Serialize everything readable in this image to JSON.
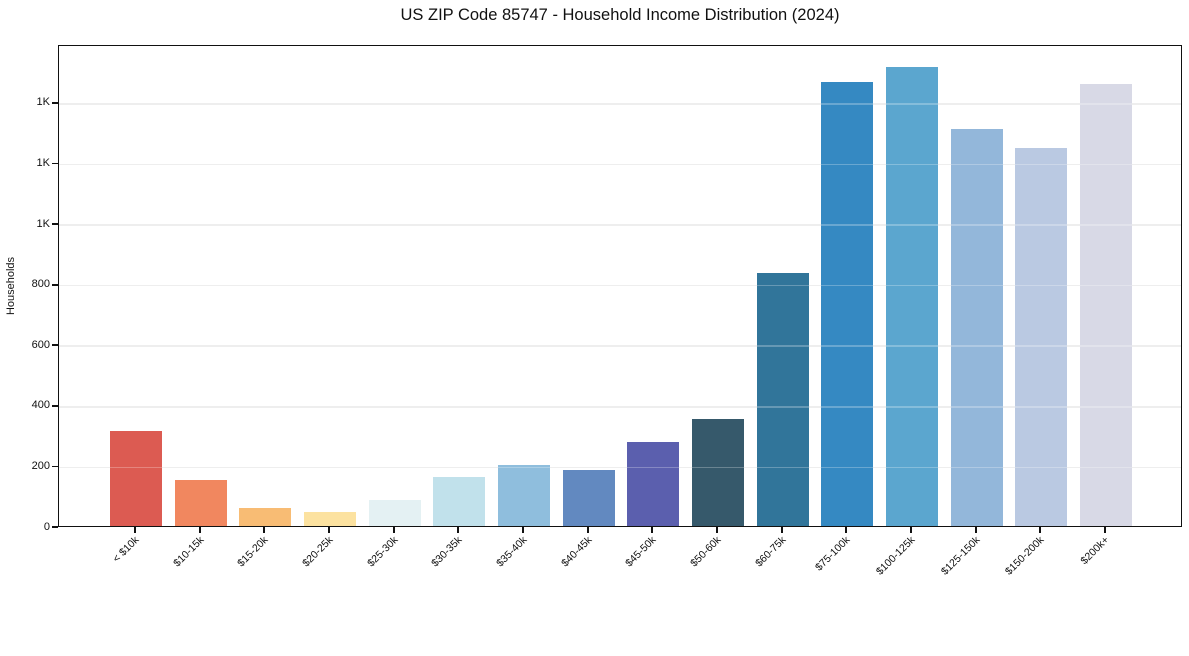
{
  "chart_data": {
    "type": "bar",
    "title": "US ZIP Code 85747 - Household Income Distribution (2024)",
    "xlabel": "",
    "ylabel": "Households",
    "categories": [
      "< $10k",
      "$10-15k",
      "$15-20k",
      "$20-25k",
      "$25-30k",
      "$30-35k",
      "$35-40k",
      "$40-45k",
      "$45-50k",
      "$50-60k",
      "$60-75k",
      "$75-100k",
      "$100-125k",
      "$125-150k",
      "$150-200k",
      "$200k+"
    ],
    "values": [
      313,
      153,
      58,
      47,
      86,
      162,
      201,
      185,
      276,
      353,
      834,
      1466,
      1515,
      1310,
      1248,
      1458
    ],
    "bar_colors": [
      "#dc5b52",
      "#f1875f",
      "#f8bc74",
      "#fce2a0",
      "#e4f1f3",
      "#c1e1eb",
      "#8fbedd",
      "#6289c0",
      "#5b5fae",
      "#36596b",
      "#31759a",
      "#3589c2",
      "#5ba6cf",
      "#93b7da",
      "#bac9e2",
      "#d8d9e6"
    ],
    "ylim": [
      0,
      1591
    ],
    "yticks": [
      0,
      200,
      400,
      600,
      800,
      1000,
      1200,
      1400
    ],
    "ytick_labels": [
      "0",
      "200",
      "400",
      "600",
      "800",
      "1K",
      "1K",
      "1K"
    ],
    "grid": "horizontal",
    "gridline_color": "#e9e9e9",
    "legend": "none",
    "xtick_rotation": 45,
    "bar_relative_width": 0.8
  },
  "colors": {
    "background": "#ffffff",
    "spine": "#111111",
    "text": "#111111"
  }
}
